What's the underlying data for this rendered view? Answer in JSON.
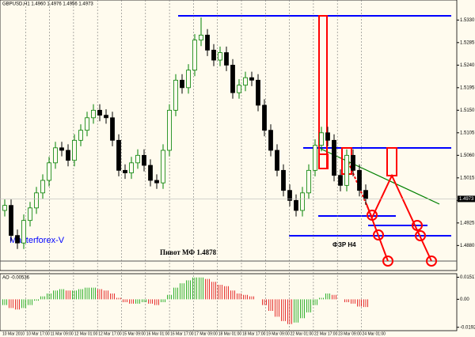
{
  "chart_data": [
    {
      "type": "candlestick",
      "title": "GBPUSD,H1 1.4960 1.4976 1.4956 1.4973",
      "open": [
        1.495,
        1.496,
        1.49,
        1.4885,
        1.493,
        1.4955,
        1.4985,
        1.501,
        1.5045,
        1.5075,
        1.507,
        1.505,
        1.509,
        1.511,
        1.5135,
        1.515,
        1.514,
        1.5135,
        1.509,
        1.503,
        1.5025,
        1.5045,
        1.506,
        1.504,
        1.501,
        1.5005,
        1.507,
        1.515,
        1.521,
        1.5195,
        1.523,
        1.529,
        1.53,
        1.527,
        1.525,
        1.5265,
        1.524,
        1.5185,
        1.52,
        1.5215,
        1.521,
        1.516,
        1.511,
        1.507,
        1.503,
        1.499,
        1.497,
        1.495,
        1.4985,
        1.503,
        1.508,
        1.5105,
        1.509,
        1.502,
        1.5,
        1.506,
        1.503,
        1.499
      ],
      "high": [
        1.4972,
        1.4972,
        1.4912,
        1.4942,
        1.4967,
        1.4997,
        1.5022,
        1.5057,
        1.5087,
        1.5087,
        1.5082,
        1.5102,
        1.5122,
        1.5147,
        1.5162,
        1.5162,
        1.5152,
        1.5147,
        1.5102,
        1.5042,
        1.5057,
        1.5072,
        1.5072,
        1.5052,
        1.5022,
        1.5082,
        1.5162,
        1.5222,
        1.5222,
        1.5242,
        1.5302,
        1.5335,
        1.5312,
        1.5282,
        1.5277,
        1.5277,
        1.5252,
        1.5212,
        1.5227,
        1.5227,
        1.5222,
        1.5172,
        1.5122,
        1.5082,
        1.5042,
        1.5002,
        1.4982,
        1.4997,
        1.5042,
        1.5092,
        1.5117,
        1.5117,
        1.5102,
        1.5032,
        1.5072,
        1.5072,
        1.5042,
        1.5002
      ],
      "low": [
        1.4938,
        1.4888,
        1.4873,
        1.4873,
        1.4918,
        1.4943,
        1.4973,
        1.4998,
        1.5033,
        1.5058,
        1.5038,
        1.5038,
        1.5078,
        1.5098,
        1.5123,
        1.5128,
        1.5123,
        1.5078,
        1.5018,
        1.5013,
        1.5013,
        1.5033,
        1.5028,
        1.4998,
        1.4993,
        1.4993,
        1.5058,
        1.5138,
        1.5183,
        1.5183,
        1.5218,
        1.5278,
        1.5258,
        1.5238,
        1.5238,
        1.5228,
        1.5173,
        1.5173,
        1.5188,
        1.5198,
        1.5148,
        1.5098,
        1.5058,
        1.5018,
        1.4978,
        1.4958,
        1.4938,
        1.4938,
        1.4973,
        1.5018,
        1.5068,
        1.5078,
        1.5008,
        1.4988,
        1.4988,
        1.5018,
        1.4978,
        1.4961
      ],
      "close": [
        1.496,
        1.49,
        1.4885,
        1.493,
        1.4955,
        1.4985,
        1.501,
        1.5045,
        1.5075,
        1.507,
        1.505,
        1.509,
        1.511,
        1.5135,
        1.515,
        1.514,
        1.5135,
        1.509,
        1.503,
        1.5025,
        1.5045,
        1.506,
        1.504,
        1.501,
        1.5005,
        1.507,
        1.515,
        1.521,
        1.5195,
        1.523,
        1.529,
        1.53,
        1.527,
        1.525,
        1.5265,
        1.524,
        1.5185,
        1.52,
        1.5215,
        1.521,
        1.516,
        1.511,
        1.507,
        1.503,
        1.499,
        1.497,
        1.495,
        1.4985,
        1.503,
        1.508,
        1.5105,
        1.509,
        1.502,
        1.5,
        1.506,
        1.503,
        1.499,
        1.4973
      ],
      "up_color": "#008000",
      "down_color": "#000000",
      "ylim": [
        1.483,
        1.537
      ],
      "yticks": [
        {
          "value": 1.488,
          "label": "1.4880"
        },
        1.4925,
        {
          "value": 1.497,
          "label": "1.4970"
        },
        1.5015,
        {
          "value": 1.506,
          "label": "1.5060"
        },
        1.5105,
        {
          "value": 1.515,
          "label": "1.5150"
        },
        1.5195,
        {
          "value": 1.524,
          "label": "1.5240"
        },
        1.5285,
        {
          "value": 1.533,
          "label": "1.5330"
        }
      ],
      "xlabels": [
        "10 Mar 2010",
        "10 Mar 17:00",
        "11 Mar 09:00",
        "12 Mar 01:00",
        "12 Mar 17:00",
        "15 Mar 09:00",
        "16 Mar 01:00",
        "16 Mar 17:00",
        "17 Mar 09:00",
        "18 Mar 01:00",
        "18 Mar 17:00",
        "19 Mar 09:00",
        "22 Mar 01:00",
        "22 Mar 17:00",
        "23 Mar 09:00",
        "24 Mar 01:00"
      ],
      "annotations": [
        "Masterforex-V",
        "Пивот МФ 1.4878",
        "ФЗР H4"
      ]
    },
    {
      "type": "bar",
      "title": "AO -0.00536",
      "values": [
        -0.004,
        -0.006,
        -0.007,
        -0.006,
        -0.004,
        -0.001,
        0.002,
        0.004,
        0.006,
        0.007,
        0.006,
        0.006,
        0.007,
        0.008,
        0.008,
        0.007,
        0.006,
        0.004,
        0.001,
        -0.002,
        -0.003,
        -0.003,
        -0.002,
        -0.003,
        -0.004,
        -0.002,
        0.003,
        0.008,
        0.011,
        0.013,
        0.015,
        0.015,
        0.014,
        0.012,
        0.01,
        0.009,
        0.006,
        0.004,
        0.003,
        0.002,
        0.0,
        -0.004,
        -0.008,
        -0.012,
        -0.015,
        -0.017,
        -0.016,
        -0.013,
        -0.009,
        -0.004,
        0.001,
        0.004,
        0.003,
        0.0,
        -0.002,
        -0.003,
        -0.005,
        -0.00536
      ],
      "up_color": "#00a000",
      "down_color": "#e00000",
      "ylim": [
        -0.0205,
        0.0165
      ],
      "yticks": [
        0.01517,
        {
          "value": 0,
          "label": "0.00"
        },
        -0.01926
      ]
    }
  ]
}
